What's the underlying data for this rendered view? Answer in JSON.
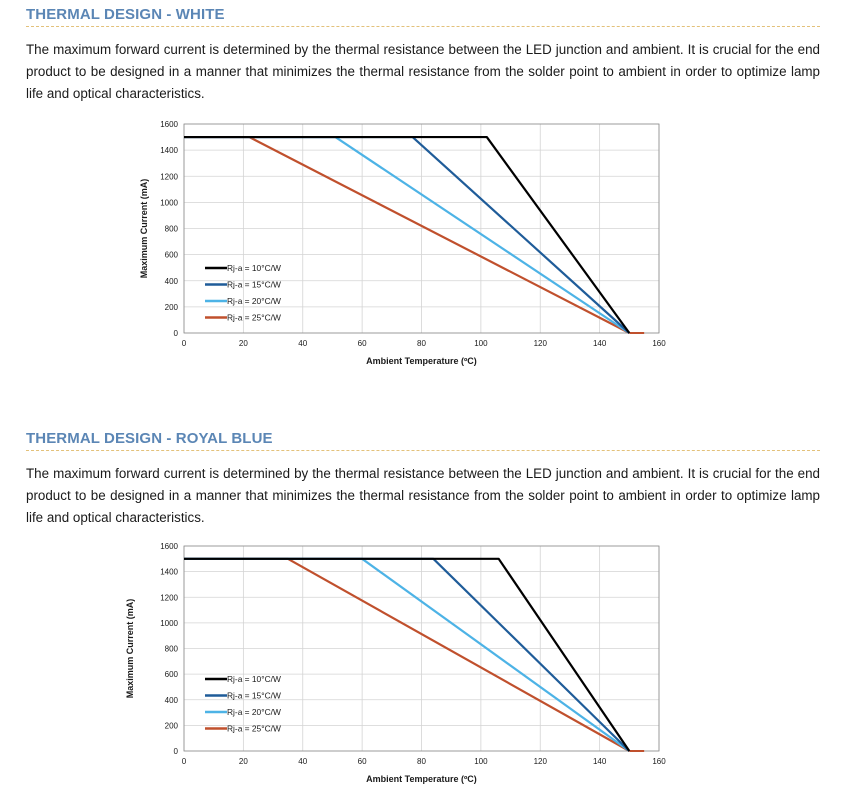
{
  "sections": [
    {
      "heading": "THERMAL DESIGN - WHITE",
      "paragraph": "The maximum forward current is determined by the thermal resistance between the LED junction and ambient. It is crucial for the end product to be designed in a manner that minimizes the thermal resistance from the solder point to ambient in order to optimize lamp life and optical characteristics."
    },
    {
      "heading": "THERMAL DESIGN - ROYAL BLUE",
      "paragraph": "The maximum forward current is determined by the thermal resistance between the LED junction and ambient. It is crucial for the end product to be designed in a manner that minimizes the thermal resistance from the solder point to ambient in order to optimize lamp life and optical characteristics."
    }
  ],
  "chart_data": [
    {
      "type": "line",
      "xlabel": "Ambient Temperature (ºC)",
      "ylabel": "Maximum Current (mA)",
      "xlim": [
        0,
        160
      ],
      "ylim": [
        0,
        1600
      ],
      "xticks": [
        0,
        20,
        40,
        60,
        80,
        100,
        120,
        140,
        160
      ],
      "yticks": [
        0,
        200,
        400,
        600,
        800,
        1000,
        1200,
        1400,
        1600
      ],
      "grid": true,
      "legend_position": "bottom-left",
      "series": [
        {
          "name": "Rj-a = 10°C/W",
          "color": "#000000",
          "x": [
            0,
            102,
            150
          ],
          "y": [
            1500,
            1500,
            0
          ]
        },
        {
          "name": "Rj-a = 15°C/W",
          "color": "#1f5c99",
          "x": [
            0,
            77,
            150
          ],
          "y": [
            1500,
            1500,
            0
          ]
        },
        {
          "name": "Rj-a = 20°C/W",
          "color": "#4db3e6",
          "x": [
            0,
            51,
            150
          ],
          "y": [
            1500,
            1500,
            0
          ]
        },
        {
          "name": "Rj-a = 25°C/W",
          "color": "#c0502d",
          "x": [
            0,
            22,
            150
          ],
          "y": [
            1500,
            1500,
            0
          ]
        }
      ],
      "extension": {
        "x": [
          150,
          155
        ],
        "y": [
          0,
          0
        ]
      }
    },
    {
      "type": "line",
      "xlabel": "Ambient Temperature (ºC)",
      "ylabel": "Maximum Current (mA)",
      "xlim": [
        0,
        160
      ],
      "ylim": [
        0,
        1600
      ],
      "xticks": [
        0,
        20,
        40,
        60,
        80,
        100,
        120,
        140,
        160
      ],
      "yticks": [
        0,
        200,
        400,
        600,
        800,
        1000,
        1200,
        1400,
        1600
      ],
      "grid": true,
      "legend_position": "bottom-left",
      "series": [
        {
          "name": "Rj-a = 10°C/W",
          "color": "#000000",
          "x": [
            0,
            106,
            150
          ],
          "y": [
            1500,
            1500,
            0
          ]
        },
        {
          "name": "Rj-a = 15°C/W",
          "color": "#1f5c99",
          "x": [
            0,
            84,
            150
          ],
          "y": [
            1500,
            1500,
            0
          ]
        },
        {
          "name": "Rj-a = 20°C/W",
          "color": "#4db3e6",
          "x": [
            0,
            60,
            150
          ],
          "y": [
            1500,
            1500,
            0
          ]
        },
        {
          "name": "Rj-a = 25°C/W",
          "color": "#c0502d",
          "x": [
            0,
            35,
            150
          ],
          "y": [
            1500,
            1500,
            0
          ]
        }
      ],
      "extension": {
        "x": [
          150,
          155
        ],
        "y": [
          0,
          0
        ]
      }
    }
  ]
}
